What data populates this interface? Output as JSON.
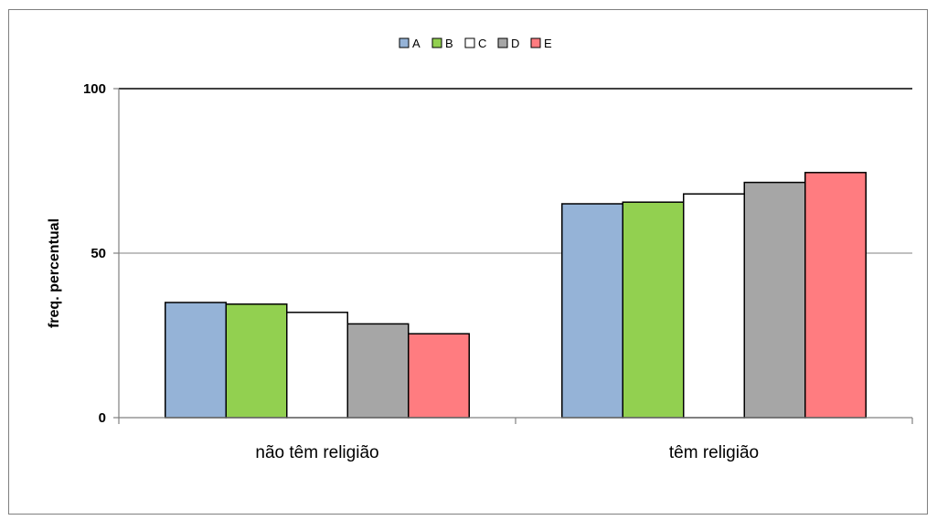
{
  "chart_data": {
    "type": "bar",
    "title": "",
    "xlabel": "",
    "ylabel": "freq. percentual",
    "ylim": [
      0,
      100
    ],
    "yticks": [
      0,
      50,
      100
    ],
    "grid": true,
    "legend_position": "top-center",
    "categories": [
      "não têm religião",
      "têm religião"
    ],
    "series": [
      {
        "name": "A",
        "color": "#95b3d7",
        "values": [
          35,
          65
        ]
      },
      {
        "name": "B",
        "color": "#92d050",
        "values": [
          34.5,
          65.5
        ]
      },
      {
        "name": "C",
        "color": "#ffffff",
        "values": [
          32,
          68
        ]
      },
      {
        "name": "D",
        "color": "#a6a6a6",
        "values": [
          28.5,
          71.5
        ]
      },
      {
        "name": "E",
        "color": "#ff7c80",
        "values": [
          25.5,
          74.5
        ]
      }
    ]
  }
}
